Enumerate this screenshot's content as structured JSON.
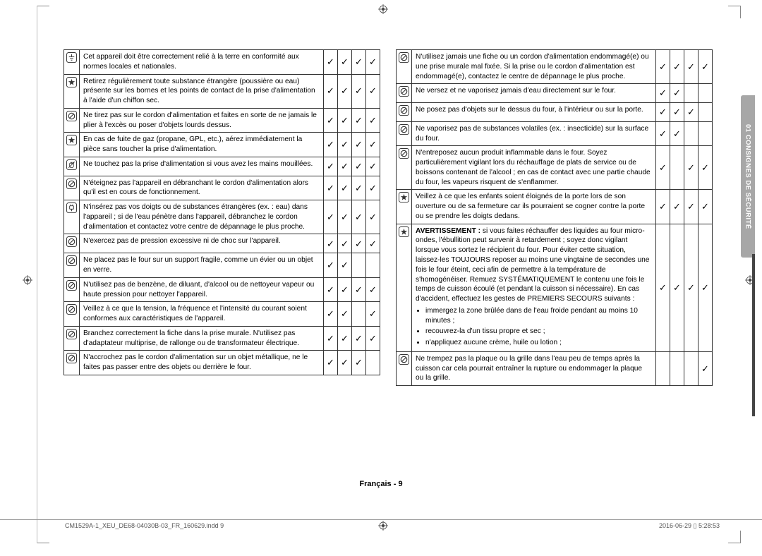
{
  "side_tab": "01  CONSIGNES DE SÉCURITÉ",
  "footer_center": "Français - 9",
  "indd_left": "CM1529A-1_XEU_DE68-04030B-03_FR_160629.indd   9",
  "indd_right": "2016-06-29   ▯ 5:28:53",
  "check_glyph": "✓",
  "left_rows": [
    {
      "icon": "ground",
      "text": "Cet appareil doit être correctement relié à la terre en conformité aux normes locales et nationales.",
      "checks": [
        true,
        true,
        true,
        true
      ]
    },
    {
      "icon": "star",
      "text": "Retirez régulièrement toute substance étrangère (poussière ou eau) présente sur les bornes et les points de contact de la prise d'alimentation à l'aide d'un chiffon sec.",
      "checks": [
        true,
        true,
        true,
        true
      ]
    },
    {
      "icon": "nocircle",
      "text": "Ne tirez pas sur le cordon d'alimentation et faites en sorte de ne jamais le plier à l'excès ou poser d'objets lourds dessus.",
      "checks": [
        true,
        true,
        true,
        true
      ]
    },
    {
      "icon": "star",
      "text": "En cas de fuite de gaz (propane, GPL, etc.), aérez immédiatement la pièce sans toucher la prise d'alimentation.",
      "checks": [
        true,
        true,
        true,
        true
      ]
    },
    {
      "icon": "nohand",
      "text": "Ne touchez pas la prise d'alimentation si vous avez les mains mouillées.",
      "checks": [
        true,
        true,
        true,
        true
      ]
    },
    {
      "icon": "nocircle",
      "text": "N'éteignez pas l'appareil en débranchant le cordon d'alimentation alors qu'il est en cours de fonctionnement.",
      "checks": [
        true,
        true,
        true,
        true
      ]
    },
    {
      "icon": "plug",
      "text": "N'insérez pas vos doigts ou de substances étrangères (ex. : eau) dans l'appareil ; si de l'eau pénètre dans l'appareil, débranchez le cordon d'alimentation et contactez votre centre de dépannage le plus proche.",
      "checks": [
        true,
        true,
        true,
        true
      ]
    },
    {
      "icon": "nocircle",
      "text": "N'exercez pas de pression excessive ni de choc sur l'appareil.",
      "checks": [
        true,
        true,
        true,
        true
      ]
    },
    {
      "icon": "nocircle",
      "text": "Ne placez pas le four sur un support fragile, comme un évier ou un objet en verre.",
      "checks": [
        true,
        true,
        false,
        false
      ]
    },
    {
      "icon": "nocircle",
      "text": "N'utilisez pas de benzène, de diluant, d'alcool ou de nettoyeur vapeur ou haute pression pour nettoyer l'appareil.",
      "checks": [
        true,
        true,
        true,
        true
      ]
    },
    {
      "icon": "nocircle",
      "text": "Veillez à ce que la tension, la fréquence et l'intensité du courant soient conformes aux caractéristiques de l'appareil.",
      "checks": [
        true,
        true,
        false,
        true
      ]
    },
    {
      "icon": "nocircle",
      "text": "Branchez correctement la fiche dans la prise murale. N'utilisez pas d'adaptateur multiprise, de rallonge ou de transformateur électrique.",
      "checks": [
        true,
        true,
        true,
        true
      ]
    },
    {
      "icon": "nocircle",
      "text": "N'accrochez pas le cordon d'alimentation sur un objet métallique, ne le faites pas passer entre des objets ou derrière le four.",
      "checks": [
        true,
        true,
        true,
        false
      ]
    }
  ],
  "right_rows": [
    {
      "icon": "nocircle",
      "text": "N'utilisez jamais une fiche ou un cordon d'alimentation endommagé(e) ou une prise murale mal fixée. Si la prise ou le cordon d'alimentation est endommagé(e), contactez le centre de dépannage le plus proche.",
      "checks": [
        true,
        true,
        true,
        true
      ]
    },
    {
      "icon": "nocircle",
      "text": "Ne versez et ne vaporisez jamais d'eau directement sur le four.",
      "checks": [
        true,
        true,
        false,
        false
      ]
    },
    {
      "icon": "nocircle",
      "text": "Ne posez pas d'objets sur le dessus du four, à l'intérieur ou sur la porte.",
      "checks": [
        true,
        true,
        true,
        false
      ]
    },
    {
      "icon": "nocircle",
      "text": "Ne vaporisez pas de substances volatiles (ex. : insecticide) sur la surface du four.",
      "checks": [
        true,
        true,
        false,
        false
      ]
    },
    {
      "icon": "nocircle",
      "text": "N'entreposez aucun produit inflammable dans le four. Soyez particulièrement vigilant lors du réchauffage de plats de service ou de boissons contenant de l'alcool ; en cas de contact avec une partie chaude du four, les vapeurs risquent de s'enflammer.",
      "checks": [
        true,
        false,
        true,
        true
      ]
    },
    {
      "icon": "star",
      "text": "Veillez à ce que les enfants soient éloignés de la porte lors de son ouverture ou de sa fermeture car ils pourraient se cogner contre la porte ou se prendre les doigts dedans.",
      "checks": [
        true,
        true,
        true,
        true
      ]
    },
    {
      "icon": "star",
      "type": "warning",
      "intro": "AVERTISSEMENT :",
      "text": " si vous faites réchauffer des liquides au four micro-ondes, l'ébullition peut survenir à retardement ; soyez donc vigilant lorsque vous sortez le récipient du four. Pour éviter cette situation, laissez-les TOUJOURS reposer au moins une vingtaine de secondes une fois le four éteint, ceci afin de permettre à la température de s'homogénéiser. Remuez SYSTÉMATIQUEMENT le contenu une fois le temps de cuisson écoulé (et pendant la cuisson si nécessaire). En cas d'accident, effectuez les gestes de PREMIERS SECOURS suivants :",
      "bullets": [
        "immergez la zone brûlée dans de l'eau froide pendant au moins 10 minutes ;",
        "recouvrez-la d'un tissu propre et sec ;",
        "n'appliquez aucune crème, huile ou lotion ;"
      ],
      "checks": [
        true,
        true,
        true,
        true
      ]
    },
    {
      "icon": "nocircle",
      "text": "Ne trempez pas la plaque ou la grille dans l'eau peu de temps après la cuisson car cela pourrait entraîner la rupture ou endommager la plaque ou la grille.",
      "checks": [
        false,
        false,
        false,
        true
      ]
    }
  ]
}
